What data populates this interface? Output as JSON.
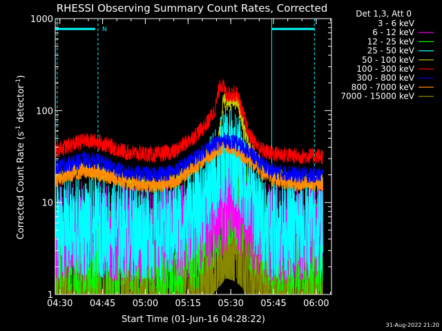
{
  "chart_data": {
    "type": "line",
    "title": "RHESSI Observing Summary Count Rates, Corrected",
    "xlabel": "Start Time (01-Jun-16 04:28:22)",
    "ylabel_main": "Corrected Count Rate (s",
    "ylabel_sup1": "-1",
    "ylabel_mid": " detector",
    "ylabel_sup2": "-1",
    "ylabel_end": ")",
    "yscale": "log",
    "ylim": [
      1,
      1000
    ],
    "xlim_minutes": [
      0,
      97
    ],
    "x_tick_labels": [
      "04:30",
      "04:45",
      "05:00",
      "05:15",
      "05:30",
      "05:45",
      "06:00"
    ],
    "x_tick_minutes": [
      1.63,
      16.63,
      31.63,
      46.63,
      61.63,
      76.63,
      91.63
    ],
    "y_tick_labels": [
      "1",
      "10",
      "100",
      "1000"
    ],
    "y_tick_values": [
      1,
      10,
      100,
      1000
    ],
    "legend_header": "Det 1,3, Att 0",
    "legend_position": "right",
    "series": [
      {
        "name": "3 - 6 keV",
        "color": "#000000",
        "points": [
          [
            0,
            1.3
          ],
          [
            15,
            1.3
          ],
          [
            30,
            1.3
          ],
          [
            40,
            1.3
          ],
          [
            45,
            1.6
          ],
          [
            50,
            2.0
          ],
          [
            55,
            3.0
          ],
          [
            58,
            4.0
          ],
          [
            60,
            4.8
          ],
          [
            62,
            4.6
          ],
          [
            64,
            4.4
          ],
          [
            66,
            4.0
          ],
          [
            67,
            3.5
          ],
          [
            69,
            2.5
          ],
          [
            72,
            1.6
          ],
          [
            76,
            1.3
          ],
          [
            97,
            1.3
          ]
        ]
      },
      {
        "name": "6 - 12 keV",
        "color": "#ff00ff",
        "points": [
          [
            0,
            4.8
          ],
          [
            15,
            4.8
          ],
          [
            30,
            4.5
          ],
          [
            40,
            4.5
          ],
          [
            45,
            5.0
          ],
          [
            50,
            5.5
          ],
          [
            55,
            7.0
          ],
          [
            58,
            9.0
          ],
          [
            60,
            10.0
          ],
          [
            62,
            9.8
          ],
          [
            64,
            9.5
          ],
          [
            66,
            8.5
          ],
          [
            68,
            6.5
          ],
          [
            72,
            5.0
          ],
          [
            76,
            4.6
          ],
          [
            97,
            4.6
          ]
        ]
      },
      {
        "name": "12 - 25 keV",
        "color": "#00ff00",
        "points": [
          [
            0,
            3.2
          ],
          [
            15,
            3.2
          ],
          [
            30,
            3.0
          ],
          [
            40,
            3.0
          ],
          [
            45,
            3.5
          ],
          [
            50,
            4.0
          ],
          [
            55,
            6.0
          ],
          [
            58,
            9.0
          ],
          [
            60,
            11.0
          ],
          [
            62,
            10.5
          ],
          [
            64,
            10.0
          ],
          [
            66,
            8.5
          ],
          [
            68,
            6.0
          ],
          [
            72,
            4.0
          ],
          [
            76,
            3.2
          ],
          [
            97,
            3.2
          ]
        ]
      },
      {
        "name": "25 - 50 keV",
        "color": "#00ffff",
        "points": [
          [
            0,
            5.2
          ],
          [
            15,
            5.4
          ],
          [
            30,
            5.0
          ],
          [
            40,
            5.0
          ],
          [
            45,
            6.5
          ],
          [
            50,
            9.0
          ],
          [
            54,
            14.0
          ],
          [
            57,
            22.0
          ],
          [
            59,
            30.0
          ],
          [
            61,
            34.0
          ],
          [
            63,
            30.0
          ],
          [
            65,
            24.0
          ],
          [
            68,
            14.0
          ],
          [
            72,
            7.0
          ],
          [
            76,
            5.2
          ],
          [
            97,
            5.2
          ]
        ]
      },
      {
        "name": "50 - 100 keV",
        "color": "#cccc00",
        "points": [
          [
            0,
            20.0
          ],
          [
            10,
            23.0
          ],
          [
            15,
            22.0
          ],
          [
            25,
            17.0
          ],
          [
            35,
            16.0
          ],
          [
            42,
            18.0
          ],
          [
            48,
            24.0
          ],
          [
            53,
            32.0
          ],
          [
            57,
            40.0
          ],
          [
            59,
            130.0
          ],
          [
            61,
            120.0
          ],
          [
            62,
            125.0
          ],
          [
            64,
            125.0
          ],
          [
            66,
            70.0
          ],
          [
            68,
            40.0
          ],
          [
            72,
            26.0
          ],
          [
            76,
            20.0
          ],
          [
            85,
            17.0
          ],
          [
            97,
            17.0
          ]
        ]
      },
      {
        "name": "100 - 300 keV",
        "color": "#ff0000",
        "points": [
          [
            0,
            37.0
          ],
          [
            10,
            47.0
          ],
          [
            15,
            46.0
          ],
          [
            25,
            35.0
          ],
          [
            35,
            33.0
          ],
          [
            42,
            36.0
          ],
          [
            48,
            50.0
          ],
          [
            53,
            70.0
          ],
          [
            56,
            100.0
          ],
          [
            58,
            200.0
          ],
          [
            59,
            180.0
          ],
          [
            60,
            150.0
          ],
          [
            62,
            152.0
          ],
          [
            64,
            150.0
          ],
          [
            66,
            90.0
          ],
          [
            68,
            55.0
          ],
          [
            72,
            38.0
          ],
          [
            76,
            34.0
          ],
          [
            85,
            32.0
          ],
          [
            97,
            32.0
          ]
        ]
      },
      {
        "name": "300 - 800 keV",
        "color": "#0000ff",
        "points": [
          [
            0,
            24.0
          ],
          [
            10,
            29.0
          ],
          [
            15,
            28.0
          ],
          [
            25,
            21.0
          ],
          [
            35,
            20.0
          ],
          [
            42,
            22.0
          ],
          [
            48,
            29.0
          ],
          [
            53,
            38.0
          ],
          [
            57,
            45.0
          ],
          [
            60,
            48.0
          ],
          [
            63,
            45.0
          ],
          [
            67,
            38.0
          ],
          [
            72,
            27.0
          ],
          [
            76,
            22.0
          ],
          [
            85,
            20.0
          ],
          [
            97,
            20.0
          ]
        ]
      },
      {
        "name": "800 - 7000 keV",
        "color": "#ff8800",
        "points": [
          [
            0,
            18.0
          ],
          [
            10,
            22.0
          ],
          [
            15,
            21.0
          ],
          [
            25,
            16.5
          ],
          [
            35,
            15.5
          ],
          [
            42,
            17.0
          ],
          [
            48,
            23.0
          ],
          [
            53,
            31.0
          ],
          [
            57,
            38.0
          ],
          [
            60,
            42.0
          ],
          [
            63,
            38.0
          ],
          [
            67,
            31.0
          ],
          [
            72,
            22.0
          ],
          [
            76,
            18.0
          ],
          [
            85,
            16.0
          ],
          [
            97,
            16.0
          ]
        ]
      },
      {
        "name": "7000 - 15000 keV",
        "color": "#888800",
        "points": [
          [
            0,
            1.5
          ],
          [
            15,
            1.5
          ],
          [
            30,
            1.5
          ],
          [
            40,
            1.6
          ],
          [
            45,
            2.0
          ],
          [
            50,
            2.5
          ],
          [
            55,
            3.3
          ],
          [
            58,
            4.2
          ],
          [
            60,
            5.0
          ],
          [
            62,
            4.8
          ],
          [
            64,
            4.5
          ],
          [
            66,
            3.8
          ],
          [
            68,
            2.8
          ],
          [
            72,
            1.8
          ],
          [
            76,
            1.5
          ],
          [
            97,
            1.5
          ]
        ]
      }
    ]
  },
  "annotations": {
    "top_bar_label": "N",
    "footer_date": "31-Aug-2022 21:20"
  }
}
